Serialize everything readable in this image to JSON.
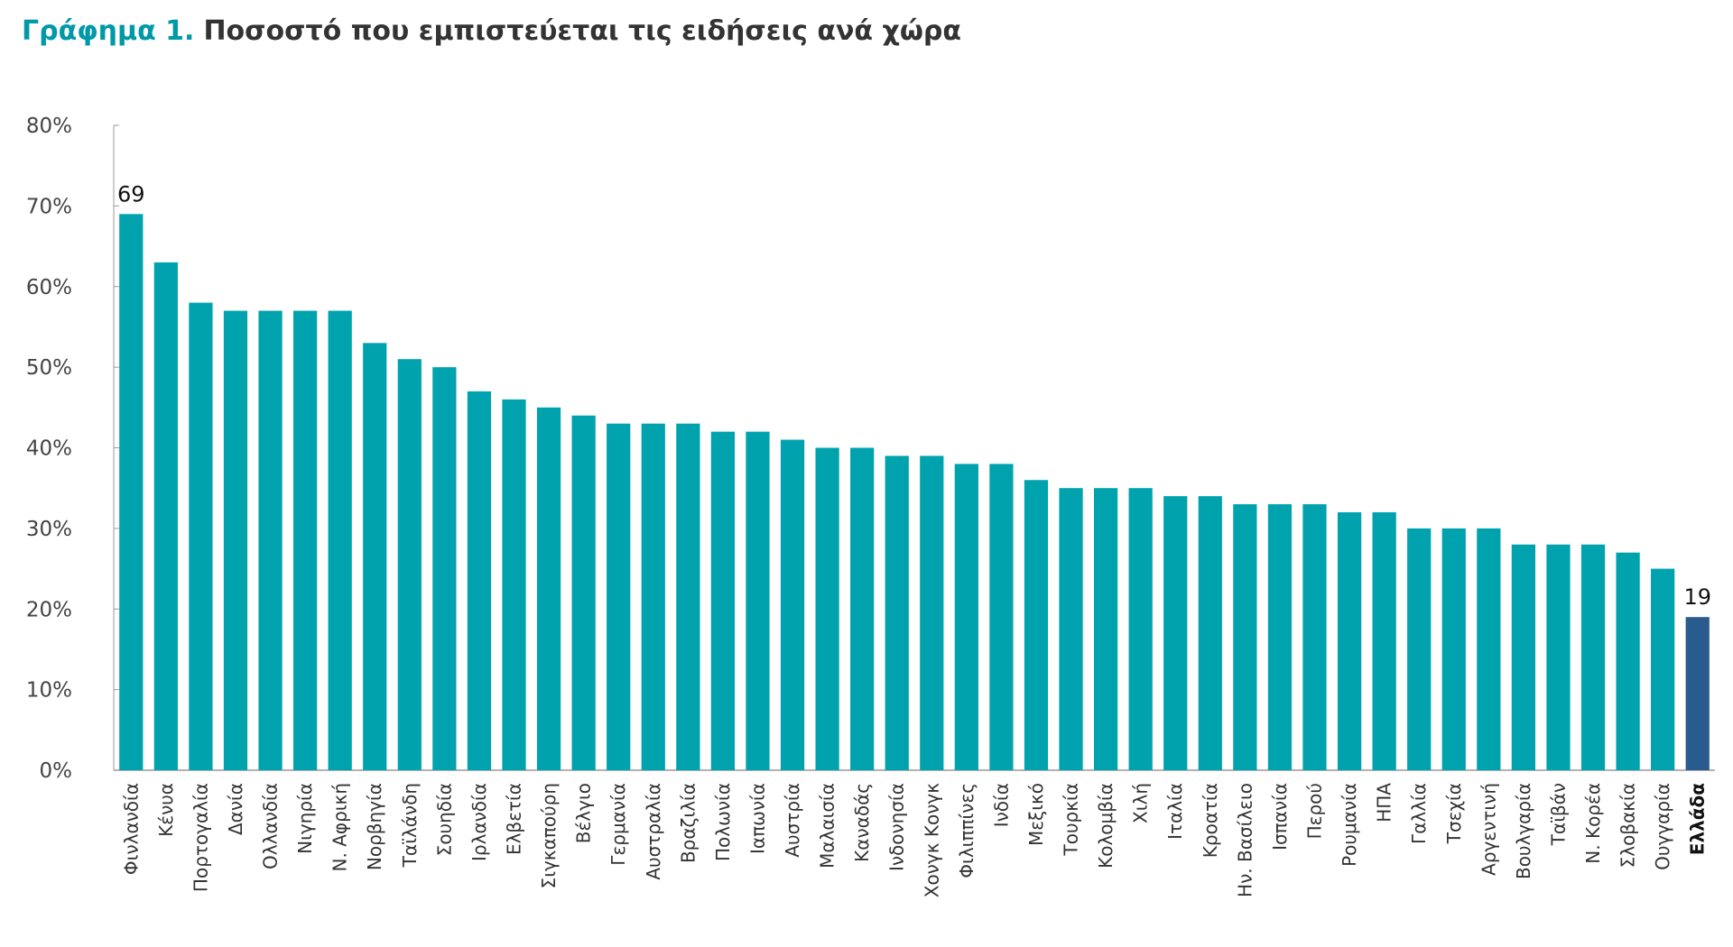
{
  "chart_data": {
    "type": "bar",
    "title_lead": "Γράφημα 1.",
    "title": "Ποσοστό που εμπιστεύεται τις ειδήσεις ανά χώρα",
    "categories": [
      "Φινλανδία",
      "Κένυα",
      "Πορτογαλία",
      "Δανία",
      "Ολλανδία",
      "Νιγηρία",
      "Ν. Αφρική",
      "Νορβηγία",
      "Ταϊλάνδη",
      "Σουηδία",
      "Ιρλανδία",
      "Ελβετία",
      "Σιγκαπούρη",
      "Βέλγιο",
      "Γερμανία",
      "Αυστραλία",
      "Βραζιλία",
      "Πολωνία",
      "Ιαπωνία",
      "Αυστρία",
      "Μαλαισία",
      "Καναδάς",
      "Ινδονησία",
      "Χονγκ Κονγκ",
      "Φιλιππίνες",
      "Ινδία",
      "Μεξικό",
      "Τουρκία",
      "Κολομβία",
      "Χιλή",
      "Ιταλία",
      "Κροατία",
      "Ην. Βασίλειο",
      "Ισπανία",
      "Περού",
      "Ρουμανία",
      "ΗΠΑ",
      "Γαλλία",
      "Τσεχία",
      "Αργεντινή",
      "Βουλγαρία",
      "Ταϊβάν",
      "Ν. Κορέα",
      "Σλοβακία",
      "Ουγγαρία",
      "Ελλάδα"
    ],
    "values": [
      69,
      63,
      58,
      57,
      57,
      57,
      57,
      53,
      51,
      50,
      47,
      46,
      45,
      44,
      43,
      43,
      43,
      42,
      42,
      41,
      40,
      40,
      39,
      39,
      38,
      38,
      36,
      35,
      35,
      35,
      34,
      34,
      33,
      33,
      33,
      32,
      32,
      30,
      30,
      30,
      28,
      28,
      28,
      27,
      25,
      19
    ],
    "colors": [
      "#00a3ad",
      "#00a3ad",
      "#00a3ad",
      "#00a3ad",
      "#00a3ad",
      "#00a3ad",
      "#00a3ad",
      "#00a3ad",
      "#00a3ad",
      "#00a3ad",
      "#00a3ad",
      "#00a3ad",
      "#00a3ad",
      "#00a3ad",
      "#00a3ad",
      "#00a3ad",
      "#00a3ad",
      "#00a3ad",
      "#00a3ad",
      "#00a3ad",
      "#00a3ad",
      "#00a3ad",
      "#00a3ad",
      "#00a3ad",
      "#00a3ad",
      "#00a3ad",
      "#00a3ad",
      "#00a3ad",
      "#00a3ad",
      "#00a3ad",
      "#00a3ad",
      "#00a3ad",
      "#00a3ad",
      "#00a3ad",
      "#00a3ad",
      "#00a3ad",
      "#00a3ad",
      "#00a3ad",
      "#00a3ad",
      "#00a3ad",
      "#00a3ad",
      "#00a3ad",
      "#00a3ad",
      "#00a3ad",
      "#00a3ad",
      "#2a5b8e"
    ],
    "ylim": [
      0,
      80
    ],
    "yticks": [
      {
        "value": 0,
        "label": "0%"
      },
      {
        "value": 10,
        "label": "10%"
      },
      {
        "value": 20,
        "label": "20%"
      },
      {
        "value": 30,
        "label": "30%"
      },
      {
        "value": 40,
        "label": "40%"
      },
      {
        "value": 50,
        "label": "50%"
      },
      {
        "value": 60,
        "label": "60%"
      },
      {
        "value": 70,
        "label": "70%"
      },
      {
        "value": 80,
        "label": "80%"
      }
    ],
    "grid": false
  }
}
